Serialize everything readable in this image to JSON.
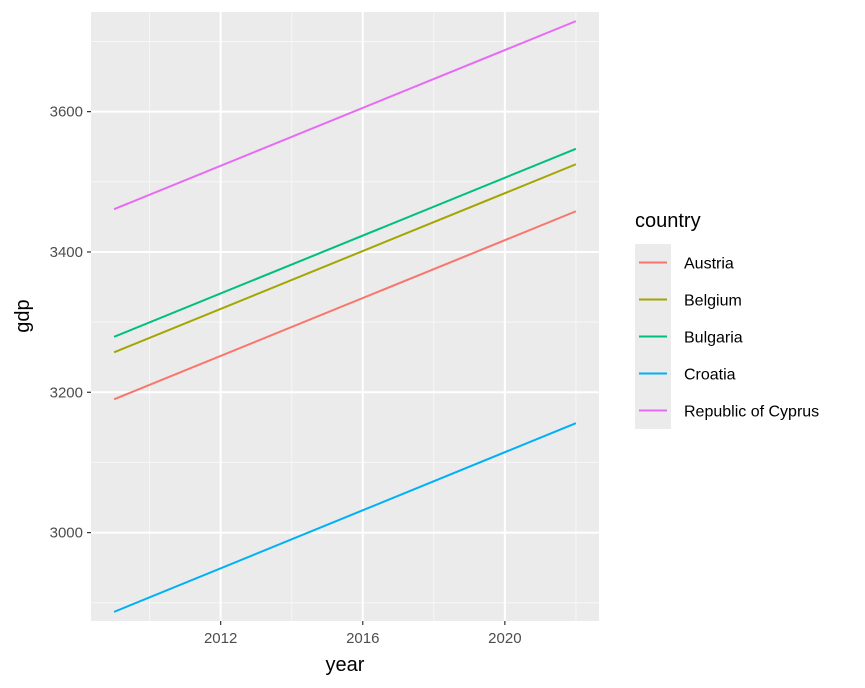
{
  "chart_data": {
    "type": "line",
    "title": "",
    "xlabel": "year",
    "ylabel": "gdp",
    "xlim": [
      2008.35,
      2022.65
    ],
    "ylim": [
      2874,
      3742
    ],
    "x_ticks": [
      2012,
      2016,
      2020
    ],
    "x_tick_labels": [
      "2012",
      "2016",
      "2020"
    ],
    "x_minor_ticks": [
      2010,
      2014,
      2018,
      2022
    ],
    "y_ticks": [
      3000,
      3200,
      3400,
      3600
    ],
    "y_tick_labels": [
      "3000",
      "3200",
      "3400",
      "3600"
    ],
    "y_minor_ticks": [
      2900,
      3100,
      3300,
      3500,
      3700
    ],
    "grid": true,
    "legend": {
      "title": "country",
      "position": "right"
    },
    "x": [
      2009,
      2022
    ],
    "series": [
      {
        "name": "Austria",
        "color": "#F8766D",
        "values": [
          3190,
          3458
        ]
      },
      {
        "name": "Belgium",
        "color": "#A3A500",
        "values": [
          3257,
          3525
        ]
      },
      {
        "name": "Bulgaria",
        "color": "#00BF7D",
        "values": [
          3279,
          3547
        ]
      },
      {
        "name": "Croatia",
        "color": "#00B0F6",
        "values": [
          2887,
          3156
        ]
      },
      {
        "name": "Republic of Cyprus",
        "color": "#E76BF3",
        "values": [
          3461,
          3729
        ]
      }
    ]
  }
}
